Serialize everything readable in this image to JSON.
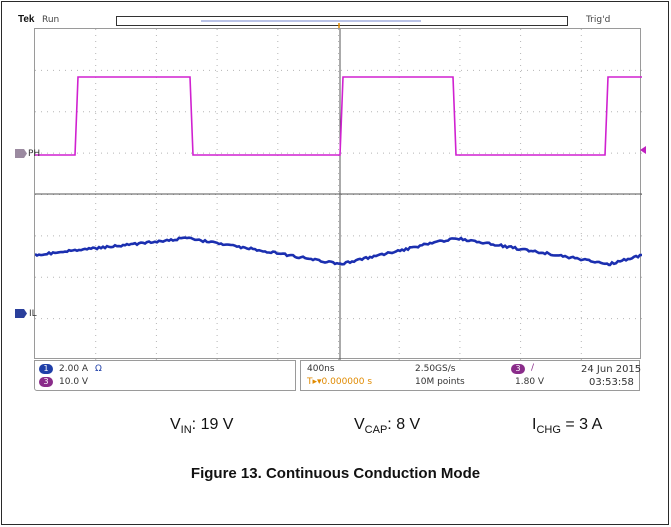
{
  "scope": {
    "brand": "Tek",
    "run_state": "Run",
    "trigger_status": "Trig'd",
    "ch_ph_label": "PH",
    "ch_il_label": "IL",
    "trigger_marker": "T",
    "colors": {
      "ch3_trace": "#d021d0",
      "ch1_trace": "#1b2fb0",
      "grid": "#9a9a9a",
      "trigger": "#e08a00"
    }
  },
  "status": {
    "ch1_num": "1",
    "ch1_scale": "2.00 A",
    "ch1_icon": "Ω",
    "ch3_num": "3",
    "ch3_scale": "10.0 V",
    "timebase": "400ns",
    "trig_pos": "T▸▾0.000000 s",
    "sample_rate": "2.50GS/s",
    "record_length": "10M points",
    "trig_src": "3",
    "trig_slope": "/",
    "trig_level": "1.80 V",
    "date": "24 Jun 2015",
    "time": "03:53:58"
  },
  "params": {
    "vin_sym": "V",
    "vin_sub": "IN",
    "vin_val": ": 19 V",
    "vcap_sym": "V",
    "vcap_sub": "CAP",
    "vcap_val": ": 8 V",
    "ichg_sym": "I",
    "ichg_sub": "CHG",
    "ichg_val": " = 3 A"
  },
  "caption": "Figure 13. Continuous Conduction Mode"
}
